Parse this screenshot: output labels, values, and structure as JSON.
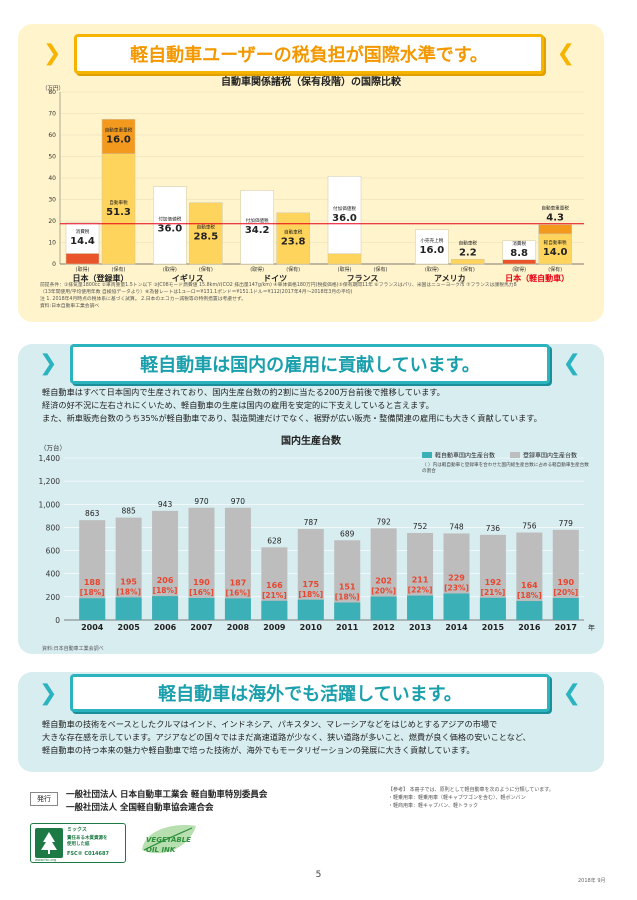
{
  "section1": {
    "banner": "軽自動車ユーザーの税負担が国際水準です。",
    "chart": {
      "title": "自動車関係諸税（保有段階）の国際比較",
      "unit": "（万円）",
      "ticks": [
        "0",
        "10",
        "20",
        "30",
        "40",
        "50",
        "60",
        "70",
        "80"
      ],
      "reference_line": 18.7,
      "groups": [
        {
          "name": "日本（登録車）",
          "name_color": "#222",
          "bars": [
            {
              "phase": "(取得)",
              "segments": [
                {
                  "value": 4.9,
                  "label": "4.9",
                  "sublabel": "自動車取得税",
                  "color": "#e9542a",
                  "label_color": "#ffffff",
                  "sub_color": "#222"
                },
                {
                  "value": 14.4,
                  "label": "14.4",
                  "sublabel": "消費税",
                  "color": "#ffffff",
                  "label_color": "#222",
                  "sub_color": "#222"
                }
              ]
            },
            {
              "phase": "(保有)",
              "segments": [
                {
                  "value": 51.3,
                  "label": "51.3",
                  "sublabel": "自動車税",
                  "color": "#ffd45c",
                  "label_color": "#222",
                  "sub_color": "#222"
                },
                {
                  "value": 16.0,
                  "label": "16.0",
                  "sublabel": "自動車重量税",
                  "color": "#f39a1e",
                  "label_color": "#222",
                  "sub_color": "#222"
                }
              ]
            }
          ]
        },
        {
          "name": "イギリス",
          "name_color": "#222",
          "bars": [
            {
              "phase": "(取得)",
              "segments": [
                {
                  "value": 36.0,
                  "label": "36.0",
                  "sublabel": "付加価値税",
                  "color": "#ffffff",
                  "label_color": "#222",
                  "sub_color": "#222"
                }
              ]
            },
            {
              "phase": "(保有)",
              "segments": [
                {
                  "value": 28.5,
                  "label": "28.5",
                  "sublabel": "自動車税",
                  "color": "#ffd45c",
                  "label_color": "#222",
                  "sub_color": "#222"
                }
              ]
            }
          ]
        },
        {
          "name": "ドイツ",
          "name_color": "#222",
          "bars": [
            {
              "phase": "(取得)",
              "segments": [
                {
                  "value": 34.2,
                  "label": "34.2",
                  "sublabel": "付加価値税",
                  "color": "#ffffff",
                  "label_color": "#222",
                  "sub_color": "#222"
                }
              ]
            },
            {
              "phase": "(保有)",
              "segments": [
                {
                  "value": 23.8,
                  "label": "23.8",
                  "sublabel": "自動車税",
                  "color": "#ffd45c",
                  "label_color": "#222",
                  "sub_color": "#222"
                }
              ]
            }
          ]
        },
        {
          "name": "フランス",
          "name_color": "#222",
          "bars": [
            {
              "phase": "(取得)",
              "segments": [
                {
                  "value": 4.8,
                  "label": "4.8",
                  "sublabel": "登録税",
                  "color": "#ffd45c",
                  "label_color": "#222",
                  "sub_color": "#222"
                },
                {
                  "value": 36.0,
                  "label": "36.0",
                  "sublabel": "付加価値税",
                  "color": "#ffffff",
                  "label_color": "#222",
                  "sub_color": "#222"
                }
              ]
            },
            {
              "phase": "(保有)",
              "segments": []
            }
          ]
        },
        {
          "name": "アメリカ",
          "name_color": "#222",
          "bars": [
            {
              "phase": "(取得)",
              "segments": [
                {
                  "value": 16.0,
                  "label": "16.0",
                  "sublabel": "小売売上税",
                  "color": "#ffffff",
                  "label_color": "#222",
                  "sub_color": "#222"
                }
              ]
            },
            {
              "phase": "(保有)",
              "segments": [
                {
                  "value": 2.2,
                  "label": "2.2",
                  "sublabel": "自動車税",
                  "color": "#ffd45c",
                  "label_color": "#222",
                  "sub_color": "#222"
                }
              ]
            }
          ]
        },
        {
          "name": "日本（軽自動車）",
          "name_color": "#e60012",
          "bars": [
            {
              "phase": "(取得)",
              "segments": [
                {
                  "value": 2.0,
                  "label": "2.0",
                  "sublabel": "自動車取得税",
                  "color": "#e9542a",
                  "label_color": "#222",
                  "sub_color": "#222"
                },
                {
                  "value": 8.8,
                  "label": "8.8",
                  "sublabel": "消費税",
                  "color": "#ffffff",
                  "label_color": "#222",
                  "sub_color": "#222"
                }
              ]
            },
            {
              "phase": "(保有)",
              "segments": [
                {
                  "value": 14.0,
                  "label": "14.0",
                  "sublabel": "軽自動車税",
                  "color": "#ffd45c",
                  "label_color": "#222",
                  "sub_color": "#222"
                },
                {
                  "value": 4.3,
                  "label": "4.3",
                  "sublabel": "自動車重量税",
                  "color": "#f39a1e",
                  "label_color": "#222",
                  "sub_color": "#222"
                }
              ]
            }
          ]
        }
      ]
    },
    "notes": [
      "前提条件：①排気量1800cc ②車両重量1.5トン以下 ③JC08モード燃費値 15.8km/ℓ(CO2 排出量147g/km) ④車体価格180万円(税抜価格)⑤保有期間11年 ⑥フランスはパリ、米国はニューヨーク市 ⑦フランスは課税馬力8",
      "（13年間使用/平均使用年数 自検協データより）⑧為替レートは1ユーロ＝¥131.1ポンド＝¥151.1ドル＝¥112(2017年4月～2018年3月の平均)",
      "注 1. 2018年4月時点の税体系に基づく試算。 2.日本のエコカー減税等の特例措置は考慮せず。",
      "資料:日本自動車工業会調べ"
    ]
  },
  "section2": {
    "banner": "軽自動車は国内の雇用に貢献しています。",
    "paragraphs": [
      "軽自動車はすべて日本国内で生産されており、国内生産台数の約2割に当たる200万台前後で推移しています。",
      "経済の好不況に左右されにくいため、軽自動車の生産は国内の雇用を安定的に下支えしていると言えます。",
      "また、新車販売台数のうち35%が軽自動車であり、製造関連だけでなく、裾野が広い販売・整備関連の雇用にも大きく貢献しています。"
    ],
    "chart": {
      "title": "国内生産台数",
      "unit": "（万台）",
      "year_suffix": "年",
      "ticks": [
        "0",
        "200",
        "400",
        "600",
        "800",
        "1,000",
        "1,200",
        "1,400"
      ],
      "legend": {
        "kei": "軽自動車国内生産台数",
        "total": "登録車国内生産台数",
        "note": "（ ）内は軽自動車と登録車を合わせた国内総生産台数に占める軽自動車生産台数の割合"
      },
      "colors": {
        "kei": "#3bb0b6",
        "total": "#bdbdbd",
        "label": "#e8462f"
      }
    },
    "source": "資料:日本自動車工業会調べ"
  },
  "chart_data": [
    {
      "type": "bar",
      "title": "自動車関係諸税（保有段階）の国際比較",
      "ylabel": "（万円）",
      "ylim": [
        0,
        80
      ],
      "categories": [
        "日本（登録車）(取得)",
        "日本（登録車）(保有)",
        "イギリス(取得)",
        "イギリス(保有)",
        "ドイツ(取得)",
        "ドイツ(保有)",
        "フランス(取得)",
        "アメリカ(取得)",
        "アメリカ(保有)",
        "日本（軽自動車）(取得)",
        "日本（軽自動車）(保有)"
      ],
      "series": [
        {
          "name": "自動車取得税",
          "values": [
            4.9,
            0,
            0,
            0,
            0,
            0,
            0,
            0,
            0,
            2.0,
            0
          ]
        },
        {
          "name": "消費税",
          "values": [
            14.4,
            0,
            0,
            0,
            0,
            0,
            0,
            0,
            0,
            8.8,
            0
          ]
        },
        {
          "name": "付加価値税",
          "values": [
            0,
            0,
            36.0,
            0,
            34.2,
            0,
            36.0,
            0,
            0,
            0,
            0
          ]
        },
        {
          "name": "登録税",
          "values": [
            0,
            0,
            0,
            0,
            0,
            0,
            4.8,
            0,
            0,
            0,
            0
          ]
        },
        {
          "name": "小売売上税",
          "values": [
            0,
            0,
            0,
            0,
            0,
            0,
            0,
            16.0,
            0,
            0,
            0
          ]
        },
        {
          "name": "自動車税",
          "values": [
            0,
            51.3,
            0,
            28.5,
            0,
            23.8,
            0,
            0,
            2.2,
            0,
            0
          ]
        },
        {
          "name": "軽自動車税",
          "values": [
            0,
            0,
            0,
            0,
            0,
            0,
            0,
            0,
            0,
            0,
            14.0
          ]
        },
        {
          "name": "自動車重量税",
          "values": [
            0,
            16.0,
            0,
            0,
            0,
            0,
            0,
            0,
            0,
            0,
            4.3
          ]
        }
      ]
    },
    {
      "type": "bar",
      "title": "国内生産台数",
      "ylabel": "（万台）",
      "ylim": [
        0,
        1400
      ],
      "categories": [
        "2004",
        "2005",
        "2006",
        "2007",
        "2008",
        "2009",
        "2010",
        "2011",
        "2012",
        "2013",
        "2014",
        "2015",
        "2016",
        "2017"
      ],
      "series": [
        {
          "name": "登録車国内生産台数",
          "values": [
            863,
            885,
            943,
            970,
            970,
            628,
            787,
            689,
            792,
            752,
            748,
            736,
            756,
            779
          ]
        },
        {
          "name": "軽自動車国内生産台数",
          "values": [
            188,
            195,
            206,
            190,
            187,
            166,
            175,
            151,
            202,
            211,
            229,
            192,
            164,
            190
          ]
        }
      ],
      "share_labels": [
        "[18%]",
        "[18%]",
        "[18%]",
        "[16%]",
        "[16%]",
        "[21%]",
        "[18%]",
        "[18%]",
        "[20%]",
        "[22%]",
        "[23%]",
        "[21%]",
        "[18%]",
        "[20%]"
      ]
    }
  ],
  "section3": {
    "banner": "軽自動車は海外でも活躍しています。",
    "paragraphs": [
      "軽自動車の技術をベースとしたクルマはインド、インドネシア、パキスタン、マレーシアなどをはじめとするアジアの市場で",
      "大きな存在感を示しています。アジアなどの国々ではまだ高速道路が少なく、狭い道路が多いこと、燃費が良く価格の安いことなど、",
      "軽自動車の持つ本来の魅力や軽自動車で培った技術が、海外でもモータリゼーションの発展に大きく貢献しています。"
    ]
  },
  "footer": {
    "label": "発行",
    "orgs": [
      "一般社団法人 日本自動車工業会 軽自動車特別委員会",
      "一般社団法人 全国軽自動車協会連合会"
    ],
    "ref": [
      "【参考】 本冊子では、原則として軽自動車を次のように分類しています。",
      "・軽乗用車：軽乗用車（軽キャブワゴンを含む）、軽ボンバン",
      "・軽商用車：軽キャブバン、軽トラック"
    ],
    "fsc_lines": [
      "ミックス",
      "責任ある木質資源を",
      "使用した紙",
      "FSC® C014687"
    ],
    "fsc_url": "www.fsc.org",
    "veg_lines": [
      "VEGETABLE",
      "OIL INK"
    ],
    "page_number": "5",
    "date": "2018年 9月"
  }
}
